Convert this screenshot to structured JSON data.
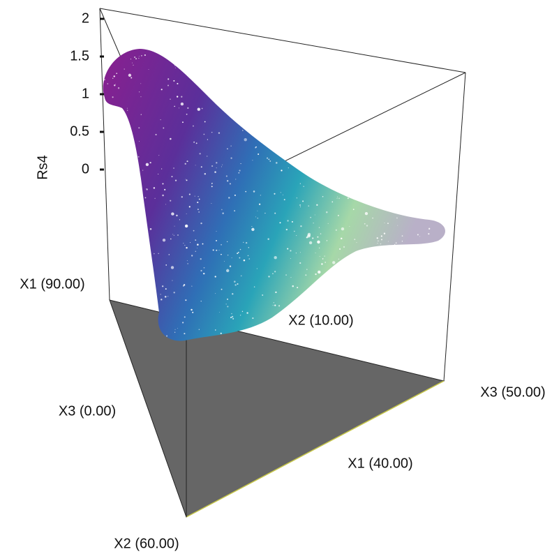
{
  "chart_data": {
    "type": "surface3d",
    "zlabel": "Rs4",
    "zlim": [
      0,
      2
    ],
    "zticks": [
      0,
      0.5,
      1,
      1.5,
      2
    ],
    "vertex_labels": {
      "top_x1": "X1 (90.00)",
      "top_x2": "X2 (10.00)",
      "top_x3": "X3 (50.00)",
      "base_x3": "X3 (0.00)",
      "base_x1": "X1 (40.00)",
      "base_x2": "X2 (60.00)"
    }
  }
}
